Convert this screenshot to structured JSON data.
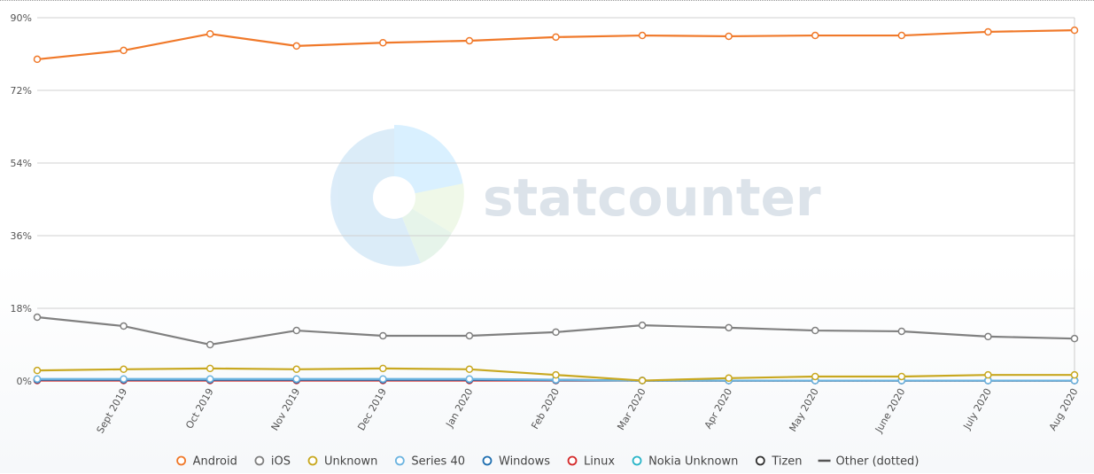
{
  "chart_data": {
    "type": "line",
    "watermark": "statcounter",
    "categories": [
      null,
      "Sept 2019",
      "Oct 2019",
      "Nov 2019",
      "Dec 2019",
      "Jan 2020",
      "Feb 2020",
      "Mar 2020",
      "Apr 2020",
      "May 2020",
      "June 2020",
      "July 2020",
      "Aug 2020"
    ],
    "ylim": [
      0,
      90
    ],
    "yticks": [
      {
        "value": 0,
        "label": "0%"
      },
      {
        "value": 18,
        "label": "18%"
      },
      {
        "value": 36,
        "label": "36%"
      },
      {
        "value": 54,
        "label": "54%"
      },
      {
        "value": 72,
        "label": "72%"
      },
      {
        "value": 90,
        "label": "90%"
      }
    ],
    "grid": true,
    "legend": "bottom",
    "series": [
      {
        "name": "Android",
        "color": "#f0792a",
        "values": [
          79.7,
          81.9,
          86.0,
          83.0,
          83.8,
          84.3,
          85.2,
          85.6,
          85.4,
          85.6,
          85.6,
          86.5,
          86.9
        ]
      },
      {
        "name": "iOS",
        "color": "#808080",
        "values": [
          15.8,
          13.6,
          9.0,
          12.5,
          11.2,
          11.2,
          12.1,
          13.8,
          13.2,
          12.5,
          12.3,
          11.0,
          10.5
        ]
      },
      {
        "name": "Unknown",
        "color": "#c8a820",
        "values": [
          2.6,
          2.9,
          3.1,
          2.9,
          3.1,
          2.9,
          1.5,
          0.1,
          0.7,
          1.1,
          1.1,
          1.5,
          1.5
        ]
      },
      {
        "name": "Series 40",
        "color": "#6cb4e0",
        "values": [
          0.5,
          0.5,
          0.5,
          0.5,
          0.5,
          0.5,
          0.3,
          0.1,
          0.1,
          0.1,
          0.1,
          0.1,
          0.1
        ]
      },
      {
        "name": "Windows",
        "color": "#1f6fb0",
        "values": [
          0.3,
          0.3,
          0.3,
          0.3,
          0.3,
          0.3,
          0.2,
          0.1,
          0.1,
          0.1,
          0.1,
          0.1,
          0.1
        ]
      },
      {
        "name": "Linux",
        "color": "#d42a2a",
        "values": [
          0.1,
          0.1,
          0.1,
          0.1,
          0.1,
          0.1,
          0.1,
          0.1,
          0.1,
          0.1,
          0.1,
          0.1,
          0.1
        ]
      },
      {
        "name": "Nokia Unknown",
        "color": "#2ab5c8",
        "values": [
          0.2,
          0.2,
          0.2,
          0.2,
          0.2,
          0.2,
          0.1,
          0.1,
          0.1,
          0.1,
          0.1,
          0.1,
          0.1
        ]
      },
      {
        "name": "Tizen",
        "color": "#333333",
        "values": [
          0.4,
          0.4,
          0.4,
          0.4,
          0.4,
          0.4,
          0.3,
          0.1,
          0.1,
          0.1,
          0.1,
          0.1,
          0.1
        ]
      },
      {
        "name": "Other (dotted)",
        "color": "#555555",
        "dotted": true,
        "values": [
          0.3,
          0.3,
          0.3,
          0.3,
          0.3,
          0.3,
          0.2,
          0.1,
          0.1,
          0.1,
          0.1,
          0.1,
          0.1
        ]
      }
    ]
  }
}
